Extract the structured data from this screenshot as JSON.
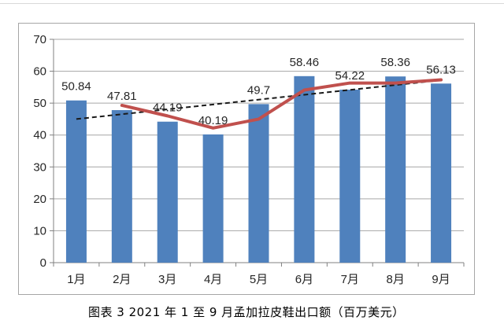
{
  "page": {
    "caption": "图表 3  2021 年 1 至 9 月孟加拉皮鞋出口额（百万美元）"
  },
  "chart_data": {
    "type": "bar",
    "title": "图表 3  2021 年 1 至 9 月孟加拉皮鞋出口额（百万美元）",
    "categories": [
      "1月",
      "2月",
      "3月",
      "4月",
      "5月",
      "6月",
      "7月",
      "8月",
      "9月"
    ],
    "series": [
      {
        "name": "皮鞋出口额（柱形）",
        "type": "bar",
        "color": "#4F81BD",
        "values": [
          50.84,
          47.81,
          44.19,
          40.19,
          49.7,
          58.46,
          54.22,
          58.36,
          56.13
        ],
        "data_labels": [
          "50.84",
          "47.81",
          "44.19",
          "40.19",
          "49.7",
          "58.46",
          "54.22",
          "58.36",
          "56.13"
        ]
      },
      {
        "name": "红色折线（约两期移动平均）",
        "type": "line",
        "color": "#C0504D",
        "values": [
          null,
          49.3,
          46.0,
          42.2,
          45.0,
          54.1,
          56.3,
          56.3,
          57.3
        ]
      },
      {
        "name": "线性趋势线（黑色虚线）",
        "type": "trendline",
        "color": "#1a1a1a",
        "endpoints": [
          45.0,
          57.2
        ]
      }
    ],
    "xlabel": "",
    "ylabel": "",
    "ylim": [
      0,
      70
    ],
    "ytick_interval": 10,
    "yticks": [
      "0",
      "10",
      "20",
      "30",
      "40",
      "50",
      "60",
      "70"
    ],
    "grid": true,
    "legend_position": "none",
    "colors": {
      "bar": "#4F81BD",
      "line": "#C0504D",
      "trendline": "#1a1a1a",
      "gridline": "#a6a6a6",
      "axis": "#808080",
      "text": "#262626",
      "frame_border": "#a6a6a6"
    }
  }
}
